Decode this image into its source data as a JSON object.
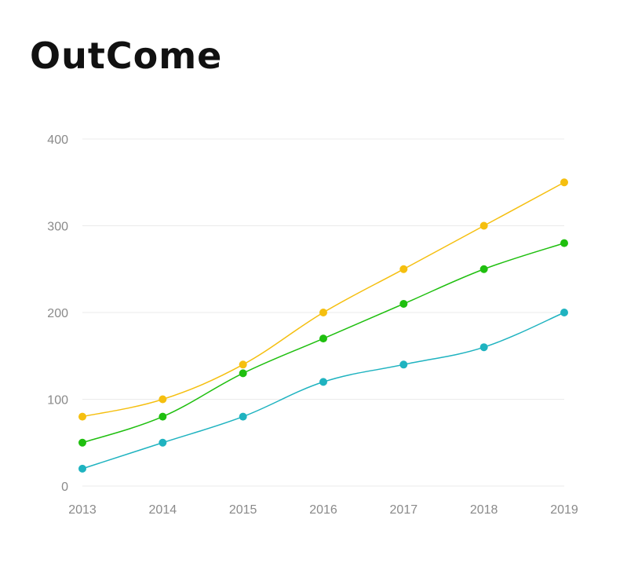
{
  "title": "OutCome",
  "chart_data": {
    "type": "line",
    "title": "OutCome",
    "xlabel": "",
    "ylabel": "",
    "x": [
      "2013",
      "2014",
      "2015",
      "2016",
      "2017",
      "2018",
      "2019"
    ],
    "ylim": [
      0,
      400
    ],
    "yticks": [
      0,
      100,
      200,
      300,
      400
    ],
    "grid": true,
    "legend": "none",
    "series": [
      {
        "color": "#f5bf0f",
        "values": [
          80,
          100,
          140,
          200,
          250,
          300,
          350
        ]
      },
      {
        "color": "#1fbf0f",
        "values": [
          50,
          80,
          130,
          170,
          210,
          250,
          280
        ]
      },
      {
        "color": "#1fb3c0",
        "values": [
          20,
          50,
          80,
          120,
          140,
          160,
          200
        ]
      }
    ]
  }
}
